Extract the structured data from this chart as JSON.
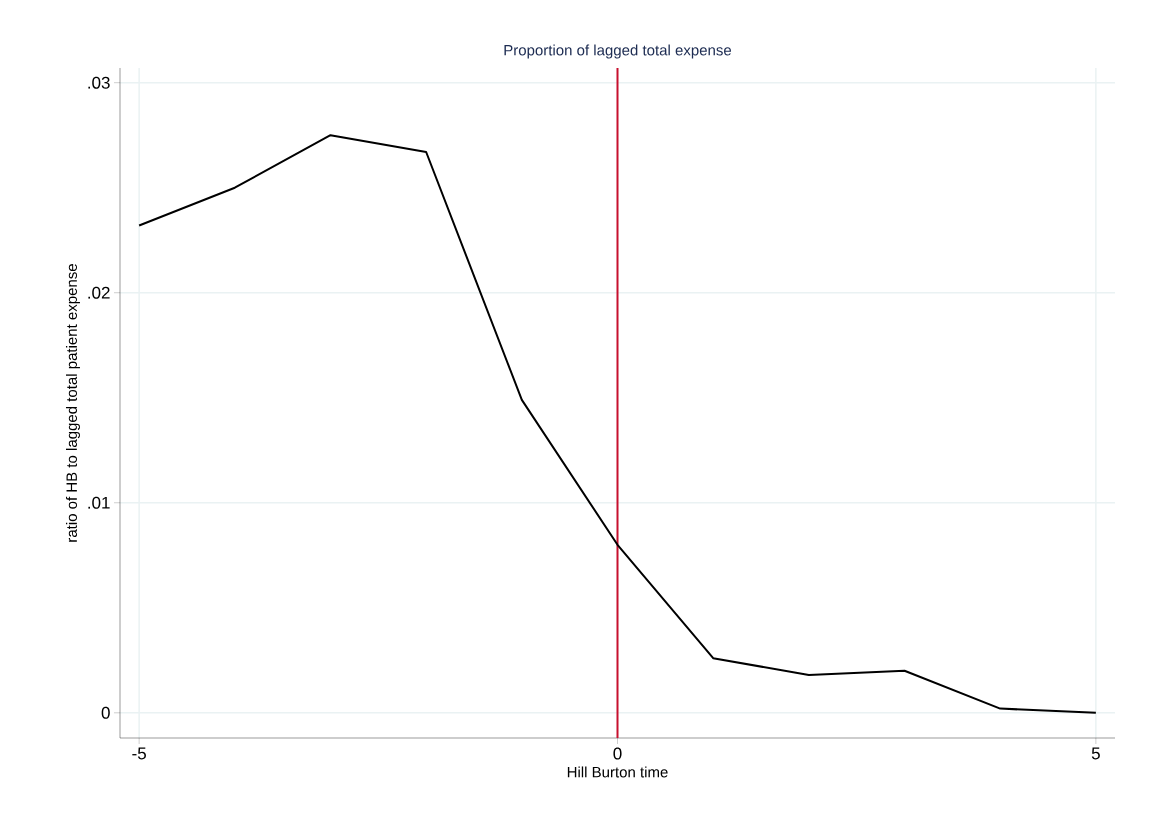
{
  "chart_data": {
    "type": "line",
    "title": "Proportion of lagged total expense",
    "xlabel": "Hill Burton time",
    "ylabel": "ratio of HB to lagged total patient expense",
    "x": [
      -5,
      -4,
      -3,
      -2,
      -1,
      0,
      1,
      2,
      3,
      4,
      5
    ],
    "series": [
      {
        "color": "#000000",
        "values": [
          0.0232,
          0.025,
          0.0275,
          0.0267,
          0.0149,
          0.008,
          0.0026,
          0.0018,
          0.002,
          0.0002,
          0.0
        ]
      }
    ],
    "xlim": [
      -5.2,
      5.2
    ],
    "ylim": [
      -0.0012,
      0.0307
    ],
    "xticks": [
      -5,
      0,
      5
    ],
    "yticks": [
      {
        "value": 0,
        "label": "0"
      },
      {
        "value": 0.01,
        "label": ".01"
      },
      {
        "value": 0.02,
        "label": ".02"
      },
      {
        "value": 0.03,
        "label": ".03"
      }
    ],
    "grid": true,
    "marker": "none",
    "line_style": "solid",
    "ref_lines": [
      {
        "axis": "x",
        "value": 0,
        "color": "#c8102e"
      }
    ]
  }
}
